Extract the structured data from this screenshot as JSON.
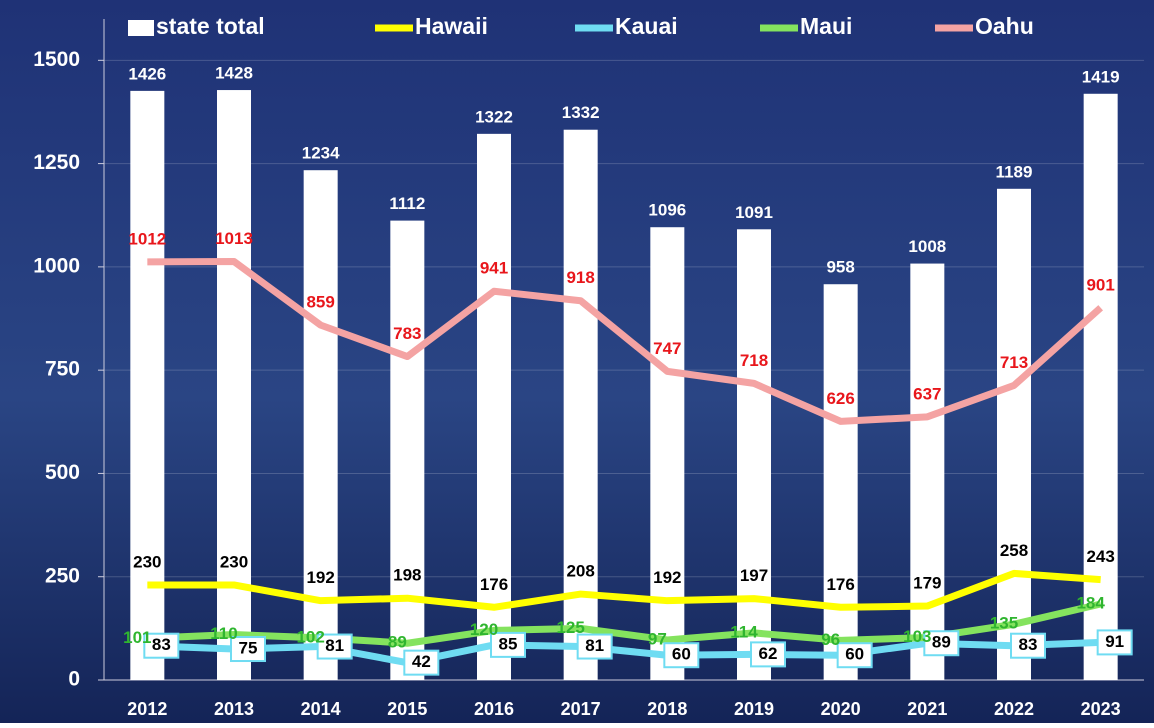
{
  "chart_data": {
    "type": "bar",
    "categories": [
      "2012",
      "2013",
      "2014",
      "2015",
      "2016",
      "2017",
      "2018",
      "2019",
      "2020",
      "2021",
      "2022",
      "2023"
    ],
    "series": [
      {
        "name": "state total",
        "type": "bar",
        "color": "#ffffff",
        "label_color": "#ffffff",
        "values": [
          1426,
          1428,
          1234,
          1112,
          1322,
          1332,
          1096,
          1091,
          958,
          1008,
          1189,
          1419
        ]
      },
      {
        "name": "Hawaii",
        "type": "line",
        "color": "#ffff00",
        "label_color": "#000000",
        "values": [
          230,
          230,
          192,
          198,
          176,
          208,
          192,
          197,
          176,
          179,
          258,
          243
        ]
      },
      {
        "name": "Kauai",
        "type": "line",
        "color": "#6fdcf2",
        "label_color": "#000000",
        "values": [
          83,
          75,
          81,
          42,
          85,
          81,
          60,
          62,
          60,
          89,
          83,
          91
        ]
      },
      {
        "name": "Maui",
        "type": "line",
        "color": "#84e35e",
        "label_color": "#2fb52f",
        "values": [
          101,
          110,
          102,
          89,
          120,
          125,
          97,
          114,
          96,
          103,
          135,
          184
        ]
      },
      {
        "name": "Oahu",
        "type": "line",
        "color": "#f4a3a3",
        "label_color": "#e8161b",
        "values": [
          1012,
          1013,
          859,
          783,
          941,
          918,
          747,
          718,
          626,
          637,
          713,
          901
        ]
      }
    ],
    "ylim": [
      0,
      1600
    ],
    "yticks": [
      0,
      250,
      500,
      750,
      1000,
      1250,
      1500
    ],
    "grid": true
  }
}
